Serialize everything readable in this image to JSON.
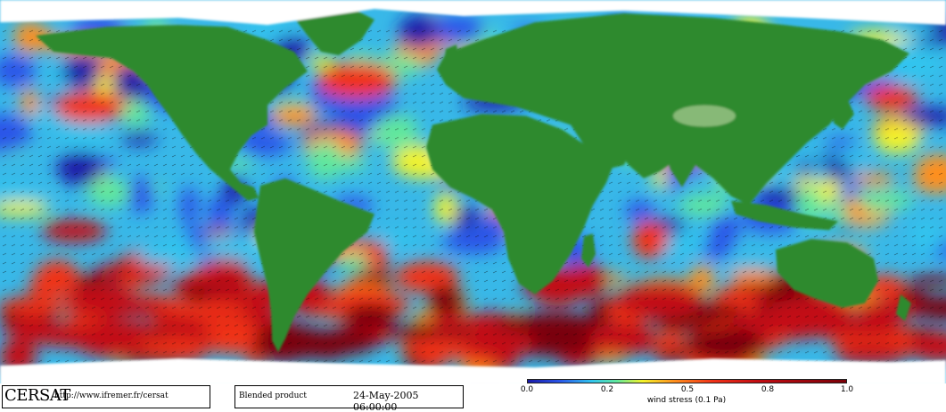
{
  "footer": {
    "brand": "CERSAT",
    "url": "http://www.ifremer.fr/cersat",
    "product": "Blended product",
    "datetime": "24-May-2005 06:00:00"
  },
  "colorbar": {
    "title": "wind stress (0.1 Pa)",
    "range": [
      0.0,
      1.0
    ],
    "ticks": [
      "0.0",
      "0.2",
      "0.5",
      "0.8",
      "1.0"
    ],
    "colors": [
      "#1a1aa8",
      "#2a55e8",
      "#31c4ee",
      "#61e89c",
      "#f3f32a",
      "#ff8f1e",
      "#f03218",
      "#c20d12",
      "#7a0008"
    ]
  },
  "map_style": {
    "land_color": "#2f8a2f",
    "land_dark_color": "#1f6f22",
    "ice_color": "#ffffff",
    "arrow_color": "#000000"
  }
}
